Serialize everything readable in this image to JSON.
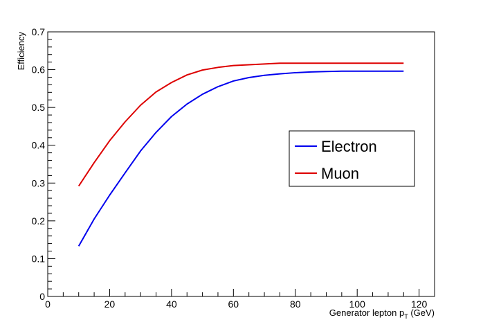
{
  "chart_data": {
    "type": "line",
    "title": "",
    "xlabel": "Generator lepton p",
    "xlabel_sub": "T",
    "xlabel_unit": " (GeV)",
    "ylabel": "Efficiency",
    "xlim": [
      0,
      125
    ],
    "ylim": [
      0,
      0.7
    ],
    "x_ticks": [
      0,
      20,
      40,
      60,
      80,
      100,
      120
    ],
    "y_ticks": [
      0,
      0.1,
      0.2,
      0.3,
      0.4,
      0.5,
      0.6,
      0.7
    ],
    "grid": false,
    "legend_position": "right",
    "x": [
      10,
      15,
      20,
      25,
      30,
      35,
      40,
      45,
      50,
      55,
      60,
      65,
      70,
      75,
      80,
      85,
      90,
      95,
      100,
      105,
      110,
      115
    ],
    "series": [
      {
        "name": "Electron",
        "color": "#0000ee",
        "values": [
          0.133,
          0.205,
          0.268,
          0.327,
          0.385,
          0.434,
          0.476,
          0.509,
          0.535,
          0.555,
          0.57,
          0.579,
          0.585,
          0.589,
          0.592,
          0.594,
          0.595,
          0.596,
          0.596,
          0.596,
          0.596,
          0.596
        ]
      },
      {
        "name": "Muon",
        "color": "#dd0000",
        "values": [
          0.292,
          0.354,
          0.412,
          0.462,
          0.506,
          0.541,
          0.566,
          0.586,
          0.599,
          0.606,
          0.611,
          0.613,
          0.615,
          0.617,
          0.617,
          0.617,
          0.617,
          0.617,
          0.617,
          0.617,
          0.617,
          0.617
        ]
      }
    ]
  }
}
